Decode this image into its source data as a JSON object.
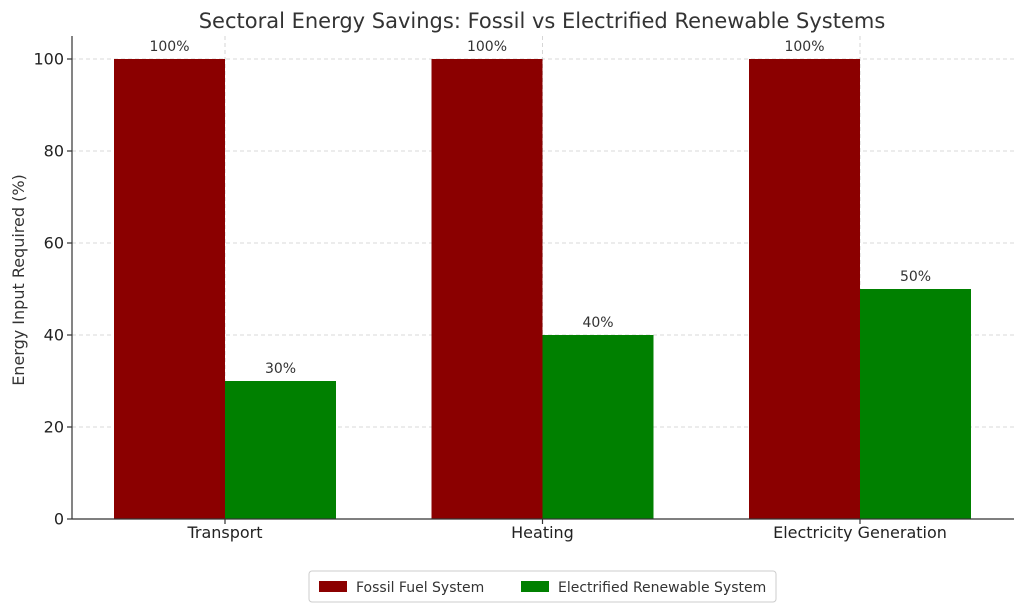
{
  "chart_data": {
    "type": "bar",
    "title": "Sectoral Energy Savings: Fossil vs Electrified Renewable Systems",
    "xlabel": "",
    "ylabel": "Energy Input Required (%)",
    "categories": [
      "Transport",
      "Heating",
      "Electricity Generation"
    ],
    "series": [
      {
        "name": "Fossil Fuel System",
        "values": [
          100,
          100,
          100
        ],
        "color": "#8b0000",
        "labels": [
          "100%",
          "100%",
          "100%"
        ]
      },
      {
        "name": "Electrified Renewable System",
        "values": [
          30,
          40,
          50
        ],
        "color": "#008000",
        "labels": [
          "30%",
          "40%",
          "50%"
        ]
      }
    ],
    "ylim": [
      0,
      105
    ],
    "yticks": [
      0,
      20,
      40,
      60,
      80,
      100
    ],
    "grid": true,
    "legend_position": "bottom-center"
  }
}
